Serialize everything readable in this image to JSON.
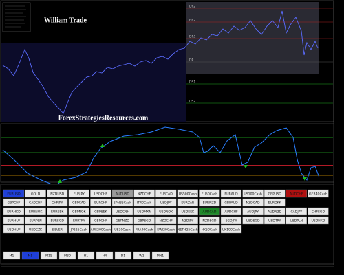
{
  "chart": {
    "title": "William Trade",
    "watermark": "ForexStrategiesResources.com",
    "levels": [
      "DR2",
      "HR2",
      "DR1",
      "DP",
      "DS1",
      "DS2"
    ]
  },
  "symbols": {
    "rows": [
      [
        {
          "label": "EURUSD",
          "color": "#1f3fd8"
        },
        "GOLD",
        "NZDUSD",
        "EURJPY",
        "USDCHF",
        {
          "label": "AUDUSD",
          "color": "#9a9a9a"
        },
        "NZDCHF",
        "EURCAD",
        "US500Cash",
        "EU50Cash",
        "EURAUD",
        "US100Cash",
        "GBPUSD",
        {
          "label": "AUDCHF",
          "color": "#b01010"
        },
        "GER40Cash"
      ],
      [
        "GBPCHF",
        "CADCHF",
        "CHFJPY",
        "GBPCAD",
        "EURCHF",
        "SPN35Cash",
        "IT40Cash",
        "USDJPY",
        "EURZAR",
        "EURNZD",
        "GBPAUD",
        "NZDCAD",
        "EURDKK"
      ],
      [
        "EURHKD",
        "EURNOK",
        "EURSEK",
        "GBPNOK",
        "GBPSEK",
        "USDCNH",
        "USDMXN",
        "USDNOK",
        "USDSEK",
        {
          "label": "AUDCAD",
          "color": "#1f8a2a"
        },
        "AUDCHF",
        "AUDJPY",
        "AUDNZD",
        "CADJPY",
        "CHFSGD"
      ],
      [
        "EURHUF",
        "EURPLN",
        "EURSGD",
        "EURTRY",
        "GBPCHF",
        "GBPNZD",
        "GBPSGD",
        "NZDCHF",
        "NZDJPY",
        "NZDSGD",
        "SGDJPY",
        "USDSGD",
        "USDTRY",
        "USDPLN",
        "USDHKD"
      ],
      [
        "USDHUF",
        "USDCZK",
        "SILVER",
        "JP225Cash",
        "AUS200Cash",
        "US30Cash",
        "FRA40Cash",
        "SWI20Cash",
        "NETH25Cash",
        "HK50Cash",
        "UK100Cash"
      ]
    ],
    "timeframes": [
      "M1",
      {
        "label": "M5",
        "color": "#1f3fd8"
      },
      "M15",
      "M30",
      "H1",
      "H4",
      "D1",
      "W1",
      "MN1"
    ]
  }
}
